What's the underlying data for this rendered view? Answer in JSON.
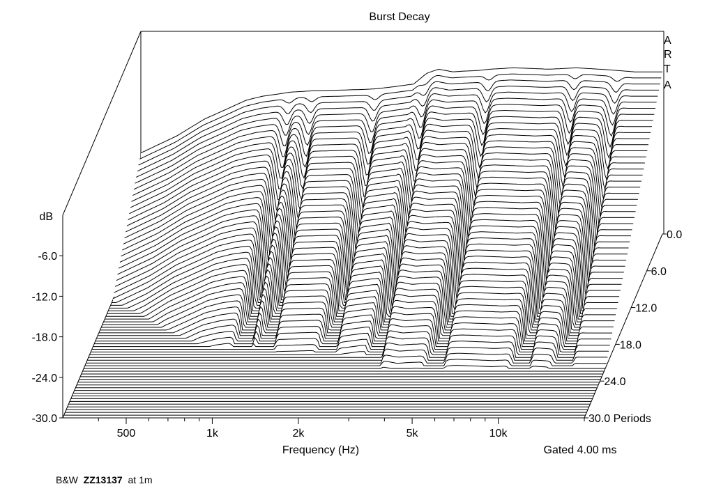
{
  "chart_data": {
    "type": "waterfall",
    "title": "Burst Decay",
    "brand": [
      "A",
      "R",
      "T",
      "A"
    ],
    "xlabel": "Frequency (Hz)",
    "x_scale": "log",
    "xlim": [
      300,
      20000
    ],
    "x_ticks": [
      {
        "value": 500,
        "label": "500"
      },
      {
        "value": 1000,
        "label": "1k"
      },
      {
        "value": 2000,
        "label": "2k"
      },
      {
        "value": 5000,
        "label": "5k"
      },
      {
        "value": 10000,
        "label": "10k"
      }
    ],
    "ylabel": "dB",
    "ylim": [
      -30,
      0
    ],
    "y_ticks": [
      -6.0,
      -12.0,
      -18.0,
      -24.0,
      -30.0
    ],
    "y_tick_labels": [
      "-6.0",
      "-12.0",
      "-18.0",
      "-24.0",
      "-30.0"
    ],
    "z_label": "Periods",
    "zlim": [
      0,
      30
    ],
    "z_ticks": [
      0,
      6,
      12,
      18,
      24,
      30
    ],
    "z_tick_labels": [
      "0.0",
      "6.0",
      "12.0",
      "18.0",
      "24.0",
      "30.0 Periods"
    ],
    "gating": "Gated 4.00 ms",
    "front_slice_periods": 0,
    "front_slice": {
      "freq_hz": [
        300,
        400,
        500,
        600,
        700,
        800,
        900,
        1000,
        1200,
        1500,
        1800,
        2000,
        2300,
        2700,
        3000,
        3300,
        3700,
        4000,
        4500,
        5000,
        5500,
        6000,
        7000,
        8000,
        9000,
        10000,
        11000,
        12000,
        13000,
        14000,
        15000,
        16000,
        17000,
        18000,
        20000
      ],
      "db": [
        -18.0,
        -15.5,
        -13.0,
        -11.5,
        -10.2,
        -9.6,
        -9.3,
        -9.0,
        -8.8,
        -8.7,
        -8.6,
        -8.5,
        -8.2,
        -7.8,
        -6.2,
        -5.6,
        -6.0,
        -5.9,
        -5.8,
        -5.6,
        -5.5,
        -5.4,
        -5.5,
        -5.6,
        -5.5,
        -5.4,
        -5.5,
        -5.6,
        -5.7,
        -5.8,
        -5.9,
        -6.0,
        -6.0,
        -6.0,
        -6.0
      ]
    },
    "dips_hz": [
      1000,
      1200,
      2000,
      3000,
      5000,
      10000,
      14000
    ],
    "slices_shown": 68,
    "slices_above_floor": 22
  },
  "footer": {
    "prefix": "B&W",
    "model": "ZZ13137",
    "suffix": "at 1m"
  }
}
